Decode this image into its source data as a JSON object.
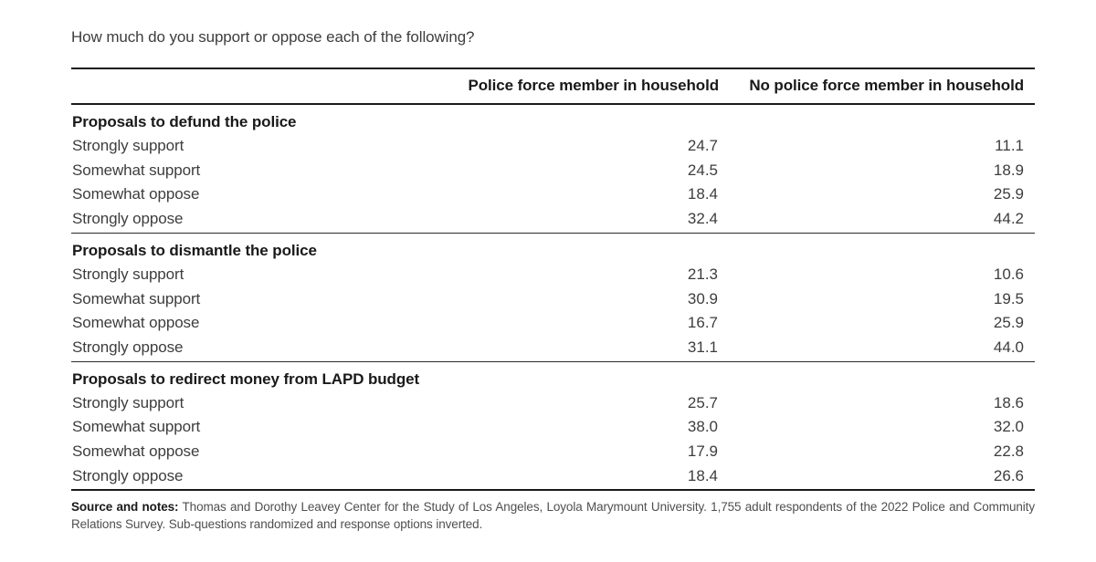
{
  "title": "How much do you support or oppose each of the following?",
  "table": {
    "col_headers": [
      "Police force member in household",
      "No police force member in household"
    ],
    "sections": [
      {
        "title": "Proposals to defund the police",
        "rows": [
          {
            "label": "Strongly support",
            "col1": "24.7",
            "col2": "11.1"
          },
          {
            "label": "Somewhat support",
            "col1": "24.5",
            "col2": "18.9"
          },
          {
            "label": "Somewhat oppose",
            "col1": "18.4",
            "col2": "25.9"
          },
          {
            "label": "Strongly oppose",
            "col1": "32.4",
            "col2": "44.2"
          }
        ]
      },
      {
        "title": "Proposals to dismantle the police",
        "rows": [
          {
            "label": "Strongly support",
            "col1": "21.3",
            "col2": "10.6"
          },
          {
            "label": "Somewhat support",
            "col1": "30.9",
            "col2": "19.5"
          },
          {
            "label": "Somewhat oppose",
            "col1": "16.7",
            "col2": "25.9"
          },
          {
            "label": "Strongly oppose",
            "col1": "31.1",
            "col2": "44.0"
          }
        ]
      },
      {
        "title": "Proposals to redirect money from LAPD budget",
        "rows": [
          {
            "label": "Strongly support",
            "col1": "25.7",
            "col2": "18.6"
          },
          {
            "label": "Somewhat support",
            "col1": "38.0",
            "col2": "32.0"
          },
          {
            "label": "Somewhat oppose",
            "col1": "17.9",
            "col2": "22.8"
          },
          {
            "label": "Strongly oppose",
            "col1": "18.4",
            "col2": "26.6"
          }
        ]
      }
    ]
  },
  "footer": {
    "label": "Source and notes:",
    "text": " Thomas and Dorothy Leavey Center for the Study of Los Angeles, Loyola Marymount University. 1,755 adult respondents of the 2022 Police and Community Relations Survey. Sub-questions randomized and response options inverted."
  },
  "colors": {
    "rule": "#1a1a1a",
    "text": "#3d3d3d",
    "bold_text": "#191919",
    "note_text": "#4f4f4f",
    "background": "#ffffff"
  },
  "chart_data": {
    "type": "table",
    "title": "How much do you support or oppose each of the following?",
    "columns": [
      "Police force member in household",
      "No police force member in household"
    ],
    "sections": [
      {
        "group": "Proposals to defund the police",
        "rows": [
          [
            "Strongly support",
            24.7,
            11.1
          ],
          [
            "Somewhat support",
            24.5,
            18.9
          ],
          [
            "Somewhat oppose",
            18.4,
            25.9
          ],
          [
            "Strongly oppose",
            32.4,
            44.2
          ]
        ]
      },
      {
        "group": "Proposals to dismantle the police",
        "rows": [
          [
            "Strongly support",
            21.3,
            10.6
          ],
          [
            "Somewhat support",
            30.9,
            19.5
          ],
          [
            "Somewhat oppose",
            16.7,
            25.9
          ],
          [
            "Strongly oppose",
            31.1,
            44.0
          ]
        ]
      },
      {
        "group": "Proposals to redirect money from LAPD budget",
        "rows": [
          [
            "Strongly support",
            25.7,
            18.6
          ],
          [
            "Somewhat support",
            38.0,
            32.0
          ],
          [
            "Somewhat oppose",
            17.9,
            22.8
          ],
          [
            "Strongly oppose",
            18.4,
            26.6
          ]
        ]
      }
    ],
    "source": "Thomas and Dorothy Leavey Center for the Study of Los Angeles, Loyola Marymount University. 1,755 adult respondents of the 2022 Police and Community Relations Survey. Sub-questions randomized and response options inverted."
  }
}
